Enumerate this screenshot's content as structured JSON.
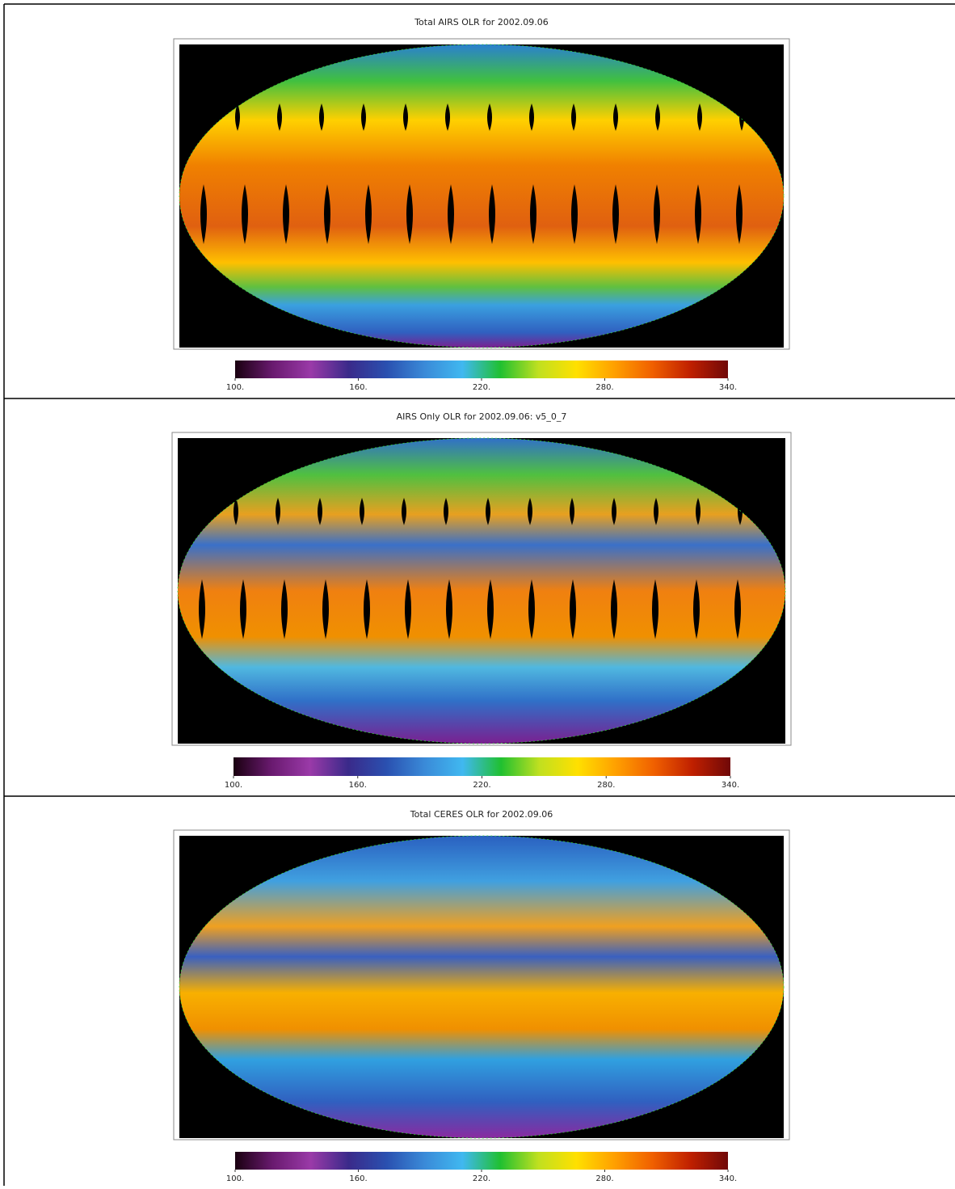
{
  "panels": [
    {
      "title": "Total AIRS OLR for 2002.09.06",
      "gaps": true
    },
    {
      "title": "AIRS Only OLR for 2002.09.06: v5_0_7",
      "gaps": true
    },
    {
      "title": "Total CERES OLR for 2002.09.06",
      "gaps": false
    }
  ],
  "colorbar": {
    "lim": [
      100,
      340
    ],
    "ticks": [
      {
        "value": 100,
        "label": "100."
      },
      {
        "value": 160,
        "label": "160."
      },
      {
        "value": 220,
        "label": "220."
      },
      {
        "value": 280,
        "label": "280."
      },
      {
        "value": 340,
        "label": "340."
      }
    ],
    "colors": [
      "#1a0010",
      "#6a1a70",
      "#9a3aa8",
      "#3a2a8a",
      "#2a50b0",
      "#3a8ad8",
      "#40b8f0",
      "#20c030",
      "#c0e020",
      "#ffe000",
      "#ffa000",
      "#f06000",
      "#c02000",
      "#700808"
    ]
  }
}
